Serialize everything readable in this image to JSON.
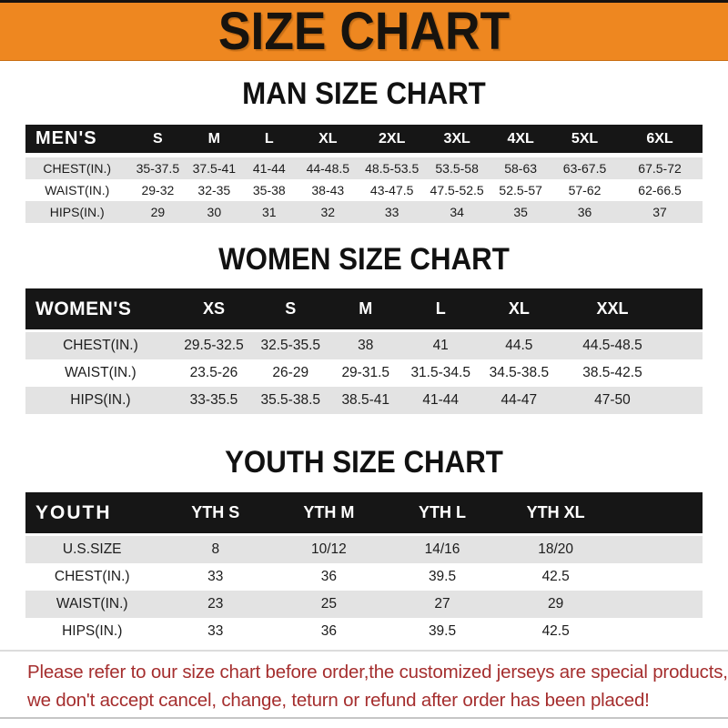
{
  "banner": {
    "title": "SIZE CHART"
  },
  "colors": {
    "banner_bg": "#ee8720",
    "table_header_bg": "#161616",
    "row_stripe_bg": "#e3e3e3",
    "footer_text": "#a52e2e"
  },
  "sections": {
    "men": {
      "title": "MAN SIZE CHART",
      "header": [
        "MEN'S",
        "S",
        "M",
        "L",
        "XL",
        "2XL",
        "3XL",
        "4XL",
        "5XL",
        "6XL"
      ],
      "rows": [
        [
          "CHEST(IN.)",
          "35-37.5",
          "37.5-41",
          "41-44",
          "44-48.5",
          "48.5-53.5",
          "53.5-58",
          "58-63",
          "63-67.5",
          "67.5-72"
        ],
        [
          "WAIST(IN.)",
          "29-32",
          "32-35",
          "35-38",
          "38-43",
          "43-47.5",
          "47.5-52.5",
          "52.5-57",
          "57-62",
          "62-66.5"
        ],
        [
          "HIPS(IN.)",
          "29",
          "30",
          "31",
          "32",
          "33",
          "34",
          "35",
          "36",
          "37"
        ]
      ]
    },
    "women": {
      "title": "WOMEN SIZE CHART",
      "header": [
        "WOMEN'S",
        "XS",
        "S",
        "M",
        "L",
        "XL",
        "XXL"
      ],
      "rows": [
        [
          "CHEST(IN.)",
          "29.5-32.5",
          "32.5-35.5",
          "38",
          "41",
          "44.5",
          "44.5-48.5"
        ],
        [
          "WAIST(IN.)",
          "23.5-26",
          "26-29",
          "29-31.5",
          "31.5-34.5",
          "34.5-38.5",
          "38.5-42.5"
        ],
        [
          "HIPS(IN.)",
          "33-35.5",
          "35.5-38.5",
          "38.5-41",
          "41-44",
          "44-47",
          "47-50"
        ]
      ]
    },
    "youth": {
      "title": "YOUTH SIZE CHART",
      "header": [
        "YOUTH",
        "YTH S",
        "YTH M",
        "YTH L",
        "YTH XL"
      ],
      "rows": [
        [
          "U.S.SIZE",
          "8",
          "10/12",
          "14/16",
          "18/20"
        ],
        [
          "CHEST(IN.)",
          "33",
          "36",
          "39.5",
          "42.5"
        ],
        [
          "WAIST(IN.)",
          "23",
          "25",
          "27",
          "29"
        ],
        [
          "HIPS(IN.)",
          "33",
          "36",
          "39.5",
          "42.5"
        ]
      ]
    }
  },
  "footer": {
    "lines": [
      "Please refer to our size chart before order,the customized jerseys are special products,",
      "we don't accept cancel, change, teturn or refund after order has been placed!"
    ]
  }
}
